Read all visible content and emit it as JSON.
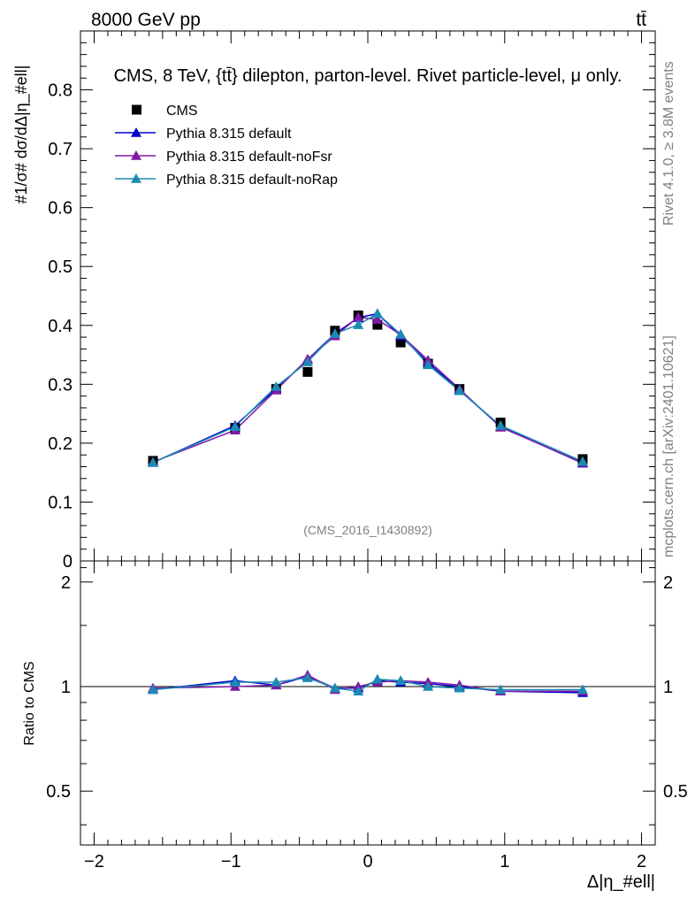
{
  "header": {
    "energy": "8000 GeV pp",
    "process": "tt̄",
    "title": "CMS, 8 TeV, {tt̄} dilepton, parton-level. Rivet particle-level, μ only.",
    "ylabel_main": "#1/σ# dσ/dΔ|η_#ell|",
    "side_rivet": "Rivet 4.1.0, ≥ 3.8M events",
    "side_mcplots": "mcplots.cern.ch [arXiv:2401.10621]",
    "analysis_id": "(CMS_2016_I1430892)",
    "xlabel": "Δ|η_#ell|",
    "ratio_ylabel": "Ratio to CMS"
  },
  "colors": {
    "data": "#000000",
    "default": "#0000cc",
    "noFsr": "#7f1aa6",
    "noRap": "#1a8cb3",
    "text_gray": "#808080",
    "frame": "#000000"
  },
  "chart_data": {
    "type": "line",
    "xlim": [
      -2.1,
      2.1
    ],
    "ylim": [
      0,
      0.9
    ],
    "ratio_ylim": [
      0.35,
      2.3
    ],
    "x_ticks": [
      -2,
      -1,
      0,
      1,
      2
    ],
    "x_tick_labels": [
      "−2",
      "−1",
      "0",
      "1",
      "2"
    ],
    "y_ticks": [
      0,
      0.1,
      0.2,
      0.3,
      0.4,
      0.5,
      0.6,
      0.7,
      0.8
    ],
    "y_tick_labels": [
      "0",
      "0.1",
      "0.2",
      "0.3",
      "0.4",
      "0.5",
      "0.6",
      "0.7",
      "0.8"
    ],
    "ratio_ticks": [
      0.5,
      1,
      2
    ],
    "ratio_tick_labels": [
      "0.5",
      "1",
      "2"
    ],
    "x": [
      -1.57,
      -0.97,
      -0.67,
      -0.44,
      -0.24,
      -0.07,
      0.07,
      0.24,
      0.44,
      0.67,
      0.97,
      1.57
    ],
    "series": [
      {
        "name": "CMS",
        "key": "data",
        "marker": "square",
        "values": [
          0.17,
          0.226,
          0.292,
          0.321,
          0.391,
          0.417,
          0.401,
          0.371,
          0.335,
          0.292,
          0.235,
          0.173
        ]
      },
      {
        "name": "Pythia 8.315 default",
        "key": "default",
        "marker": "triangle",
        "values": [
          0.167,
          0.23,
          0.292,
          0.342,
          0.386,
          0.413,
          0.42,
          0.382,
          0.337,
          0.29,
          0.228,
          0.166
        ]
      },
      {
        "name": "Pythia 8.315 default-noFsr",
        "key": "noFsr",
        "marker": "triangle",
        "values": [
          0.168,
          0.222,
          0.29,
          0.343,
          0.382,
          0.414,
          0.41,
          0.384,
          0.341,
          0.292,
          0.227,
          0.167
        ]
      },
      {
        "name": "Pythia 8.315 default-noRap",
        "key": "noRap",
        "marker": "triangle",
        "values": [
          0.167,
          0.228,
          0.296,
          0.338,
          0.386,
          0.401,
          0.42,
          0.385,
          0.333,
          0.289,
          0.23,
          0.169
        ]
      }
    ],
    "ratio_series": [
      {
        "key": "default",
        "values": [
          0.98,
          1.04,
          1.01,
          1.07,
          0.99,
          0.99,
          1.04,
          1.03,
          1.02,
          1.0,
          0.97,
          0.96
        ]
      },
      {
        "key": "noFsr",
        "values": [
          0.99,
          1.0,
          1.01,
          1.08,
          0.98,
          1.0,
          1.03,
          1.04,
          1.03,
          1.01,
          0.97,
          0.97
        ]
      },
      {
        "key": "noRap",
        "values": [
          0.98,
          1.03,
          1.03,
          1.06,
          0.99,
          0.97,
          1.05,
          1.04,
          1.0,
          0.99,
          0.98,
          0.98
        ]
      }
    ],
    "legend_position": "top-left"
  }
}
